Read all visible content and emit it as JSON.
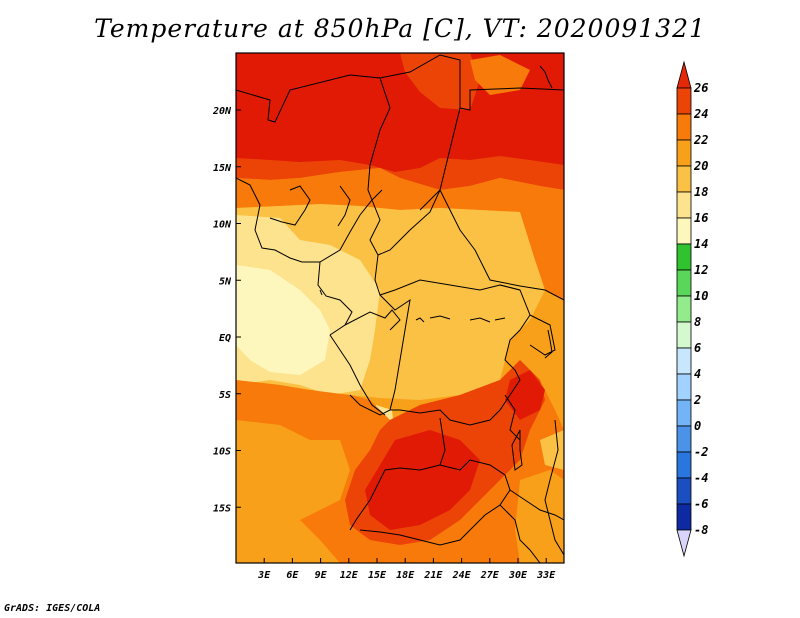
{
  "title": "Temperature at 850hPa [C], VT: 2020091321",
  "credit": "GrADS: IGES/COLA",
  "map": {
    "variable": "Temperature at 850hPa",
    "units": "C",
    "valid_time": "2020091321",
    "lat_ticks": [
      {
        "label": "20N",
        "value": 20
      },
      {
        "label": "15N",
        "value": 15
      },
      {
        "label": "10N",
        "value": 10
      },
      {
        "label": "5N",
        "value": 5
      },
      {
        "label": "EQ",
        "value": 0
      },
      {
        "label": "5S",
        "value": -5
      },
      {
        "label": "10S",
        "value": -10
      },
      {
        "label": "15S",
        "value": -15
      }
    ],
    "lon_ticks": [
      {
        "label": "3E",
        "value": 3
      },
      {
        "label": "6E",
        "value": 6
      },
      {
        "label": "9E",
        "value": 9
      },
      {
        "label": "12E",
        "value": 12
      },
      {
        "label": "15E",
        "value": 15
      },
      {
        "label": "18E",
        "value": 18
      },
      {
        "label": "21E",
        "value": 21
      },
      {
        "label": "24E",
        "value": 24
      },
      {
        "label": "27E",
        "value": 27
      },
      {
        "label": "30E",
        "value": 30
      },
      {
        "label": "33E",
        "value": 33
      }
    ],
    "colorbar": {
      "labels": [
        "26",
        "24",
        "22",
        "20",
        "18",
        "16",
        "14",
        "12",
        "10",
        "8",
        "6",
        "4",
        "2",
        "0",
        "-2",
        "-4",
        "-6",
        "-8"
      ],
      "colors": [
        "#e01a05",
        "#ec4406",
        "#f77a0a",
        "#f9a01a",
        "#fbc144",
        "#fde38e",
        "#fdf7bd",
        "#30c22f",
        "#5ad75a",
        "#93ec8c",
        "#d5f9cf",
        "#c7e7ff",
        "#a2d2ff",
        "#72b4f5",
        "#4a93e8",
        "#2876de",
        "#1b4fc1",
        "#0e2aa2",
        "#08108a"
      ],
      "low_arrow_color": "#d8d4fa",
      "high_arrow_color": "#e52908"
    }
  }
}
